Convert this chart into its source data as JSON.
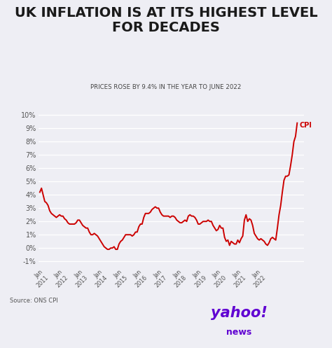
{
  "title": "UK INFLATION IS AT ITS HIGHEST LEVEL\nFOR DECADES",
  "subtitle": "PRICES ROSE BY 9.4% IN THE YEAR TO JUNE 2022",
  "source": "Source: ONS CPI",
  "line_color": "#cc0000",
  "cpi_label": "CPI",
  "background_color": "#eeeef4",
  "title_color": "#1a1a1a",
  "subtitle_color": "#444444",
  "ylim": [
    -1.5,
    10.8
  ],
  "cpi_data": [
    4.2,
    4.5,
    4.0,
    3.5,
    3.4,
    3.2,
    2.8,
    2.6,
    2.5,
    2.4,
    2.3,
    2.4,
    2.5,
    2.4,
    2.4,
    2.2,
    2.1,
    1.9,
    1.8,
    1.8,
    1.8,
    1.8,
    1.9,
    2.1,
    2.1,
    1.9,
    1.7,
    1.6,
    1.5,
    1.5,
    1.2,
    1.0,
    1.0,
    1.1,
    1.0,
    0.9,
    0.7,
    0.5,
    0.3,
    0.1,
    0.0,
    -0.1,
    -0.1,
    0.0,
    0.0,
    0.1,
    -0.1,
    -0.1,
    0.3,
    0.5,
    0.6,
    0.8,
    1.0,
    1.0,
    1.0,
    1.0,
    0.9,
    1.0,
    1.2,
    1.2,
    1.6,
    1.8,
    1.8,
    2.3,
    2.6,
    2.6,
    2.6,
    2.7,
    2.9,
    3.0,
    3.1,
    3.0,
    3.0,
    2.7,
    2.5,
    2.4,
    2.4,
    2.4,
    2.4,
    2.3,
    2.4,
    2.4,
    2.3,
    2.1,
    2.0,
    1.9,
    1.9,
    2.0,
    2.1,
    2.0,
    2.4,
    2.5,
    2.4,
    2.4,
    2.3,
    2.1,
    1.8,
    1.8,
    1.9,
    2.0,
    2.0,
    2.0,
    2.1,
    2.0,
    2.0,
    1.7,
    1.5,
    1.3,
    1.4,
    1.7,
    1.5,
    1.5,
    0.8,
    0.5,
    0.6,
    0.2,
    0.5,
    0.4,
    0.3,
    0.3,
    0.6,
    0.4,
    0.7,
    0.9,
    2.1,
    2.5,
    2.0,
    2.2,
    2.1,
    1.7,
    1.1,
    0.9,
    0.7,
    0.6,
    0.7,
    0.6,
    0.5,
    0.3,
    0.2,
    0.4,
    0.7,
    0.8,
    0.7,
    0.6,
    1.5,
    2.5,
    3.2,
    4.2,
    5.1,
    5.4,
    5.4,
    5.5,
    6.2,
    7.0,
    8.0,
    8.4,
    9.4
  ]
}
